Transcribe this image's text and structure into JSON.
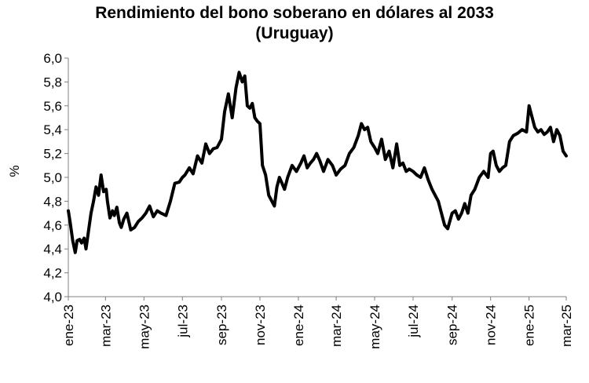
{
  "chart_data": {
    "type": "line",
    "title_line1": "Rendimiento del bono soberano en dólares al 2033",
    "title_line2": "(Uruguay)",
    "xlabel": "",
    "ylabel": "%",
    "ylim": [
      4.0,
      6.0
    ],
    "yticks": [
      "4,0",
      "4,2",
      "4,4",
      "4,6",
      "4,8",
      "5,0",
      "5,2",
      "5,4",
      "5,6",
      "5,8",
      "6,0"
    ],
    "xlim": [
      "2023-01-01",
      "2025-03-01"
    ],
    "xticks": [
      {
        "date": "2023-01-01",
        "label": "ene-23"
      },
      {
        "date": "2023-03-01",
        "label": "mar-23"
      },
      {
        "date": "2023-05-01",
        "label": "may-23"
      },
      {
        "date": "2023-07-01",
        "label": "jul-23"
      },
      {
        "date": "2023-09-01",
        "label": "sep-23"
      },
      {
        "date": "2023-11-01",
        "label": "nov-23"
      },
      {
        "date": "2024-01-01",
        "label": "ene-24"
      },
      {
        "date": "2024-03-01",
        "label": "mar-24"
      },
      {
        "date": "2024-05-01",
        "label": "may-24"
      },
      {
        "date": "2024-07-01",
        "label": "jul-24"
      },
      {
        "date": "2024-09-01",
        "label": "sep-24"
      },
      {
        "date": "2024-11-01",
        "label": "nov-24"
      },
      {
        "date": "2025-01-01",
        "label": "ene-25"
      },
      {
        "date": "2025-03-01",
        "label": "mar-25"
      }
    ],
    "grid": false,
    "legend": "none",
    "line_color": "#000000",
    "series": [
      {
        "x": [
          "2023-01-01",
          "2023-01-04",
          "2023-01-08",
          "2023-01-12",
          "2023-01-15",
          "2023-01-19",
          "2023-01-22",
          "2023-01-26",
          "2023-01-29",
          "2023-02-02",
          "2023-02-06",
          "2023-02-10",
          "2023-02-14",
          "2023-02-18",
          "2023-02-22",
          "2023-02-26",
          "2023-03-02",
          "2023-03-04",
          "2023-03-08",
          "2023-03-12",
          "2023-03-15",
          "2023-03-19",
          "2023-03-23",
          "2023-03-26",
          "2023-03-30",
          "2023-04-04",
          "2023-04-10",
          "2023-04-16",
          "2023-04-22",
          "2023-04-28",
          "2023-05-04",
          "2023-05-10",
          "2023-05-16",
          "2023-05-22",
          "2023-05-28",
          "2023-06-05",
          "2023-06-12",
          "2023-06-19",
          "2023-06-26",
          "2023-07-01",
          "2023-07-05",
          "2023-07-12",
          "2023-07-18",
          "2023-07-25",
          "2023-08-01",
          "2023-08-07",
          "2023-08-13",
          "2023-08-19",
          "2023-08-25",
          "2023-09-01",
          "2023-09-06",
          "2023-09-12",
          "2023-09-18",
          "2023-09-24",
          "2023-09-29",
          "2023-10-04",
          "2023-10-08",
          "2023-10-12",
          "2023-10-16",
          "2023-10-20",
          "2023-10-24",
          "2023-10-28",
          "2023-11-01",
          "2023-11-05",
          "2023-11-10",
          "2023-11-15",
          "2023-11-20",
          "2023-11-24",
          "2023-11-28",
          "2023-12-02",
          "2023-12-06",
          "2023-12-10",
          "2023-12-15",
          "2023-12-22",
          "2023-12-29",
          "2024-01-01",
          "2024-01-05",
          "2024-01-10",
          "2024-01-15",
          "2024-01-20",
          "2024-01-25",
          "2024-01-30",
          "2024-02-04",
          "2024-02-10",
          "2024-02-17",
          "2024-02-24",
          "2024-03-01",
          "2024-03-08",
          "2024-03-15",
          "2024-03-22",
          "2024-03-29",
          "2024-04-05",
          "2024-04-10",
          "2024-04-15",
          "2024-04-20",
          "2024-04-25",
          "2024-05-01",
          "2024-05-06",
          "2024-05-12",
          "2024-05-18",
          "2024-05-24",
          "2024-05-30",
          "2024-06-05",
          "2024-06-10",
          "2024-06-15",
          "2024-06-20",
          "2024-06-25",
          "2024-07-01",
          "2024-07-07",
          "2024-07-13",
          "2024-07-19",
          "2024-07-25",
          "2024-07-31",
          "2024-08-05",
          "2024-08-10",
          "2024-08-15",
          "2024-08-20",
          "2024-08-25",
          "2024-09-01",
          "2024-09-06",
          "2024-09-11",
          "2024-09-16",
          "2024-09-21",
          "2024-09-26",
          "2024-10-01",
          "2024-10-07",
          "2024-10-14",
          "2024-10-21",
          "2024-10-28",
          "2024-11-01",
          "2024-11-05",
          "2024-11-10",
          "2024-11-15",
          "2024-11-20",
          "2024-11-25",
          "2024-12-01",
          "2024-12-07",
          "2024-12-14",
          "2024-12-21",
          "2024-12-28",
          "2025-01-01",
          "2025-01-05",
          "2025-01-10",
          "2025-01-15",
          "2025-01-20",
          "2025-01-25",
          "2025-01-30",
          "2025-02-04",
          "2025-02-09",
          "2025-02-14",
          "2025-02-19",
          "2025-02-24",
          "2025-03-01"
        ],
        "y": [
          4.72,
          4.62,
          4.47,
          4.37,
          4.47,
          4.48,
          4.45,
          4.49,
          4.4,
          4.55,
          4.7,
          4.8,
          4.92,
          4.85,
          5.02,
          4.88,
          4.9,
          4.8,
          4.66,
          4.72,
          4.68,
          4.75,
          4.62,
          4.58,
          4.65,
          4.7,
          4.56,
          4.58,
          4.63,
          4.66,
          4.7,
          4.76,
          4.67,
          4.72,
          4.7,
          4.68,
          4.8,
          4.95,
          4.96,
          5.0,
          5.02,
          5.08,
          5.03,
          5.18,
          5.12,
          5.28,
          5.2,
          5.24,
          5.25,
          5.32,
          5.55,
          5.7,
          5.5,
          5.75,
          5.88,
          5.8,
          5.85,
          5.6,
          5.58,
          5.62,
          5.5,
          5.47,
          5.45,
          5.1,
          5.02,
          4.85,
          4.8,
          4.76,
          4.92,
          5.0,
          4.95,
          4.9,
          5.0,
          5.1,
          5.05,
          5.08,
          5.12,
          5.18,
          5.08,
          5.12,
          5.15,
          5.2,
          5.14,
          5.05,
          5.15,
          5.1,
          5.02,
          5.07,
          5.1,
          5.2,
          5.25,
          5.35,
          5.45,
          5.4,
          5.42,
          5.3,
          5.25,
          5.2,
          5.32,
          5.15,
          5.22,
          5.08,
          5.28,
          5.1,
          5.12,
          5.05,
          5.07,
          5.05,
          5.02,
          5.0,
          5.08,
          4.98,
          4.9,
          4.85,
          4.8,
          4.7,
          4.6,
          4.57,
          4.7,
          4.72,
          4.65,
          4.7,
          4.78,
          4.7,
          4.85,
          4.9,
          5.0,
          5.05,
          5.0,
          5.2,
          5.22,
          5.1,
          5.05,
          5.08,
          5.1,
          5.3,
          5.35,
          5.37,
          5.4,
          5.38,
          5.6,
          5.52,
          5.42,
          5.38,
          5.4,
          5.36,
          5.38,
          5.42,
          5.3,
          5.4,
          5.35,
          5.22,
          5.18
        ]
      }
    ]
  }
}
